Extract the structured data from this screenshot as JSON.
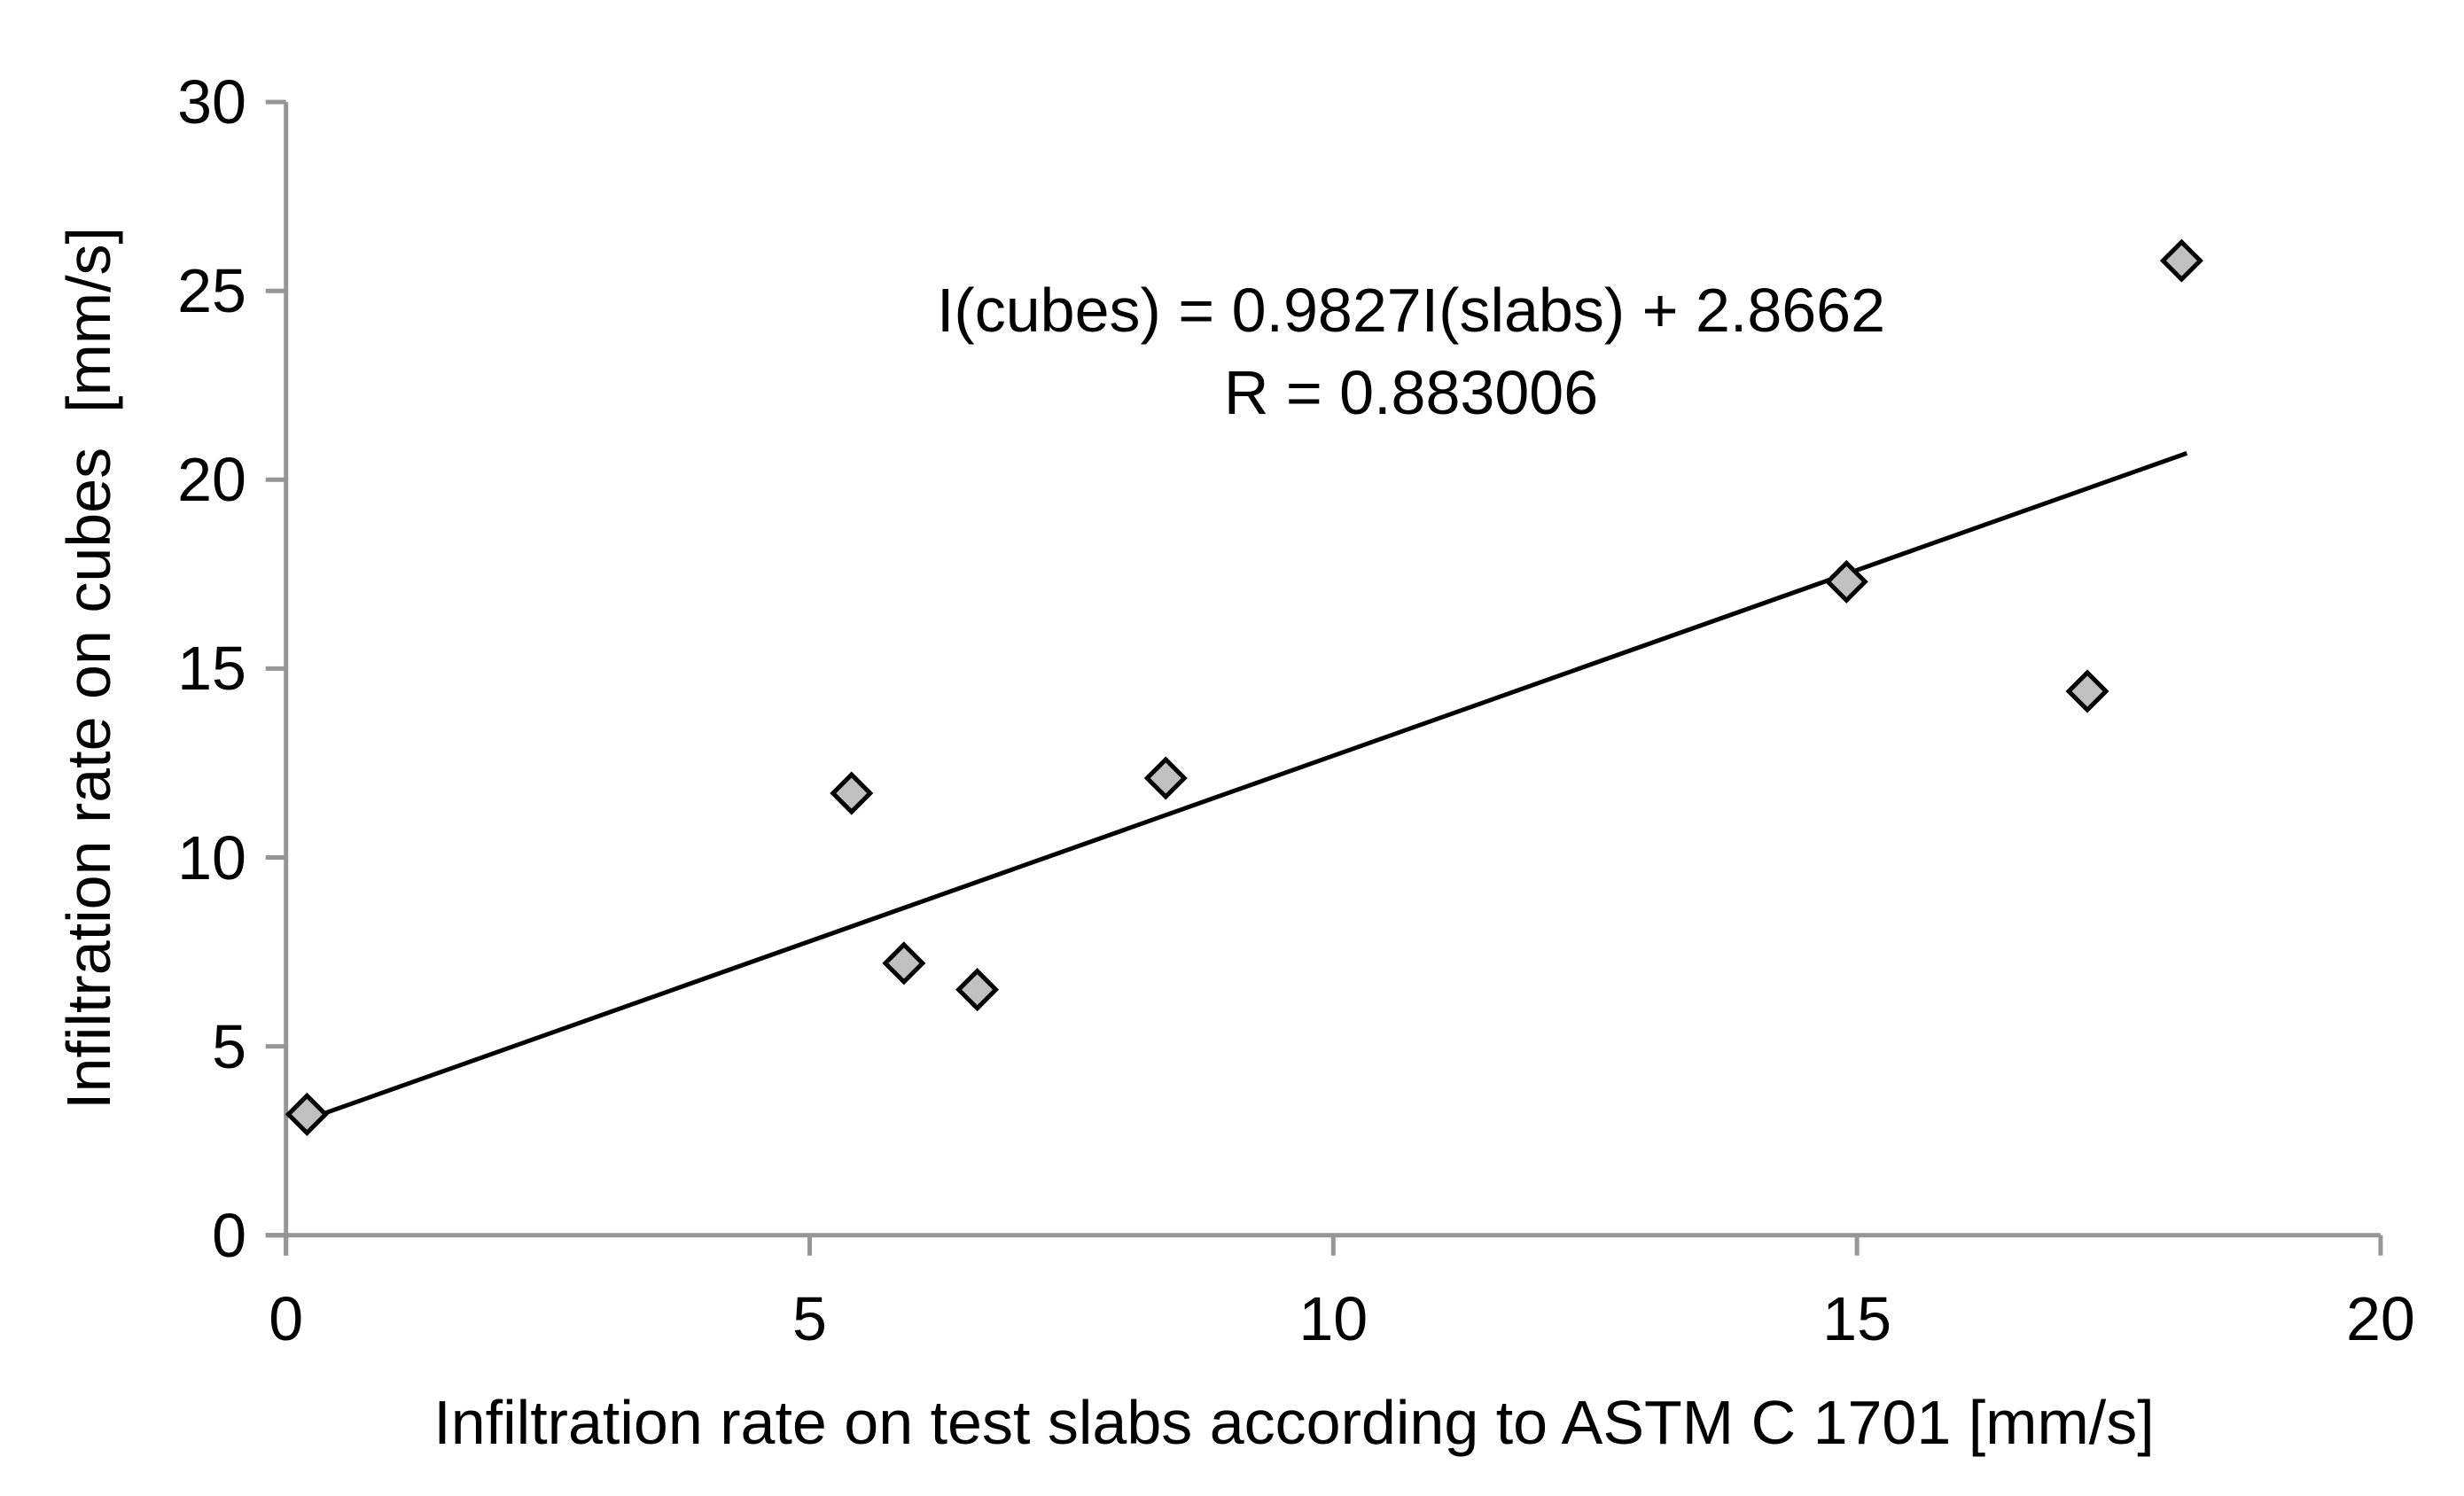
{
  "chart_data": {
    "type": "scatter",
    "xlabel": "Infiltration rate on test slabs according to ASTM C 1701 [mm/s]",
    "ylabel": "Infiltration rate on cubes  [mm/s]",
    "xlim": [
      0,
      20
    ],
    "ylim": [
      0,
      30
    ],
    "xticks": [
      0,
      5,
      10,
      15,
      20
    ],
    "yticks": [
      0,
      5,
      10,
      15,
      20,
      25,
      30
    ],
    "grid": false,
    "legend": "none",
    "points": [
      {
        "x": 0.2,
        "y": 3.2
      },
      {
        "x": 5.4,
        "y": 11.7
      },
      {
        "x": 5.9,
        "y": 7.2
      },
      {
        "x": 6.6,
        "y": 6.5
      },
      {
        "x": 8.4,
        "y": 12.1
      },
      {
        "x": 14.9,
        "y": 17.3
      },
      {
        "x": 17.2,
        "y": 14.4
      },
      {
        "x": 18.1,
        "y": 25.8
      }
    ],
    "trendline": {
      "slope": 0.9827,
      "intercept": 2.8662,
      "x_start": 0.25,
      "x_end": 18.15
    },
    "annotation": {
      "line1": "I(cubes) = 0.9827I(slabs) + 2.8662",
      "line2": "R = 0.883006"
    },
    "colors": {
      "marker_fill": "#c0c0c0",
      "marker_stroke": "#000000",
      "axis": "#969696",
      "trend": "#000000",
      "text": "#000000"
    },
    "marker_shape": "diamond"
  }
}
